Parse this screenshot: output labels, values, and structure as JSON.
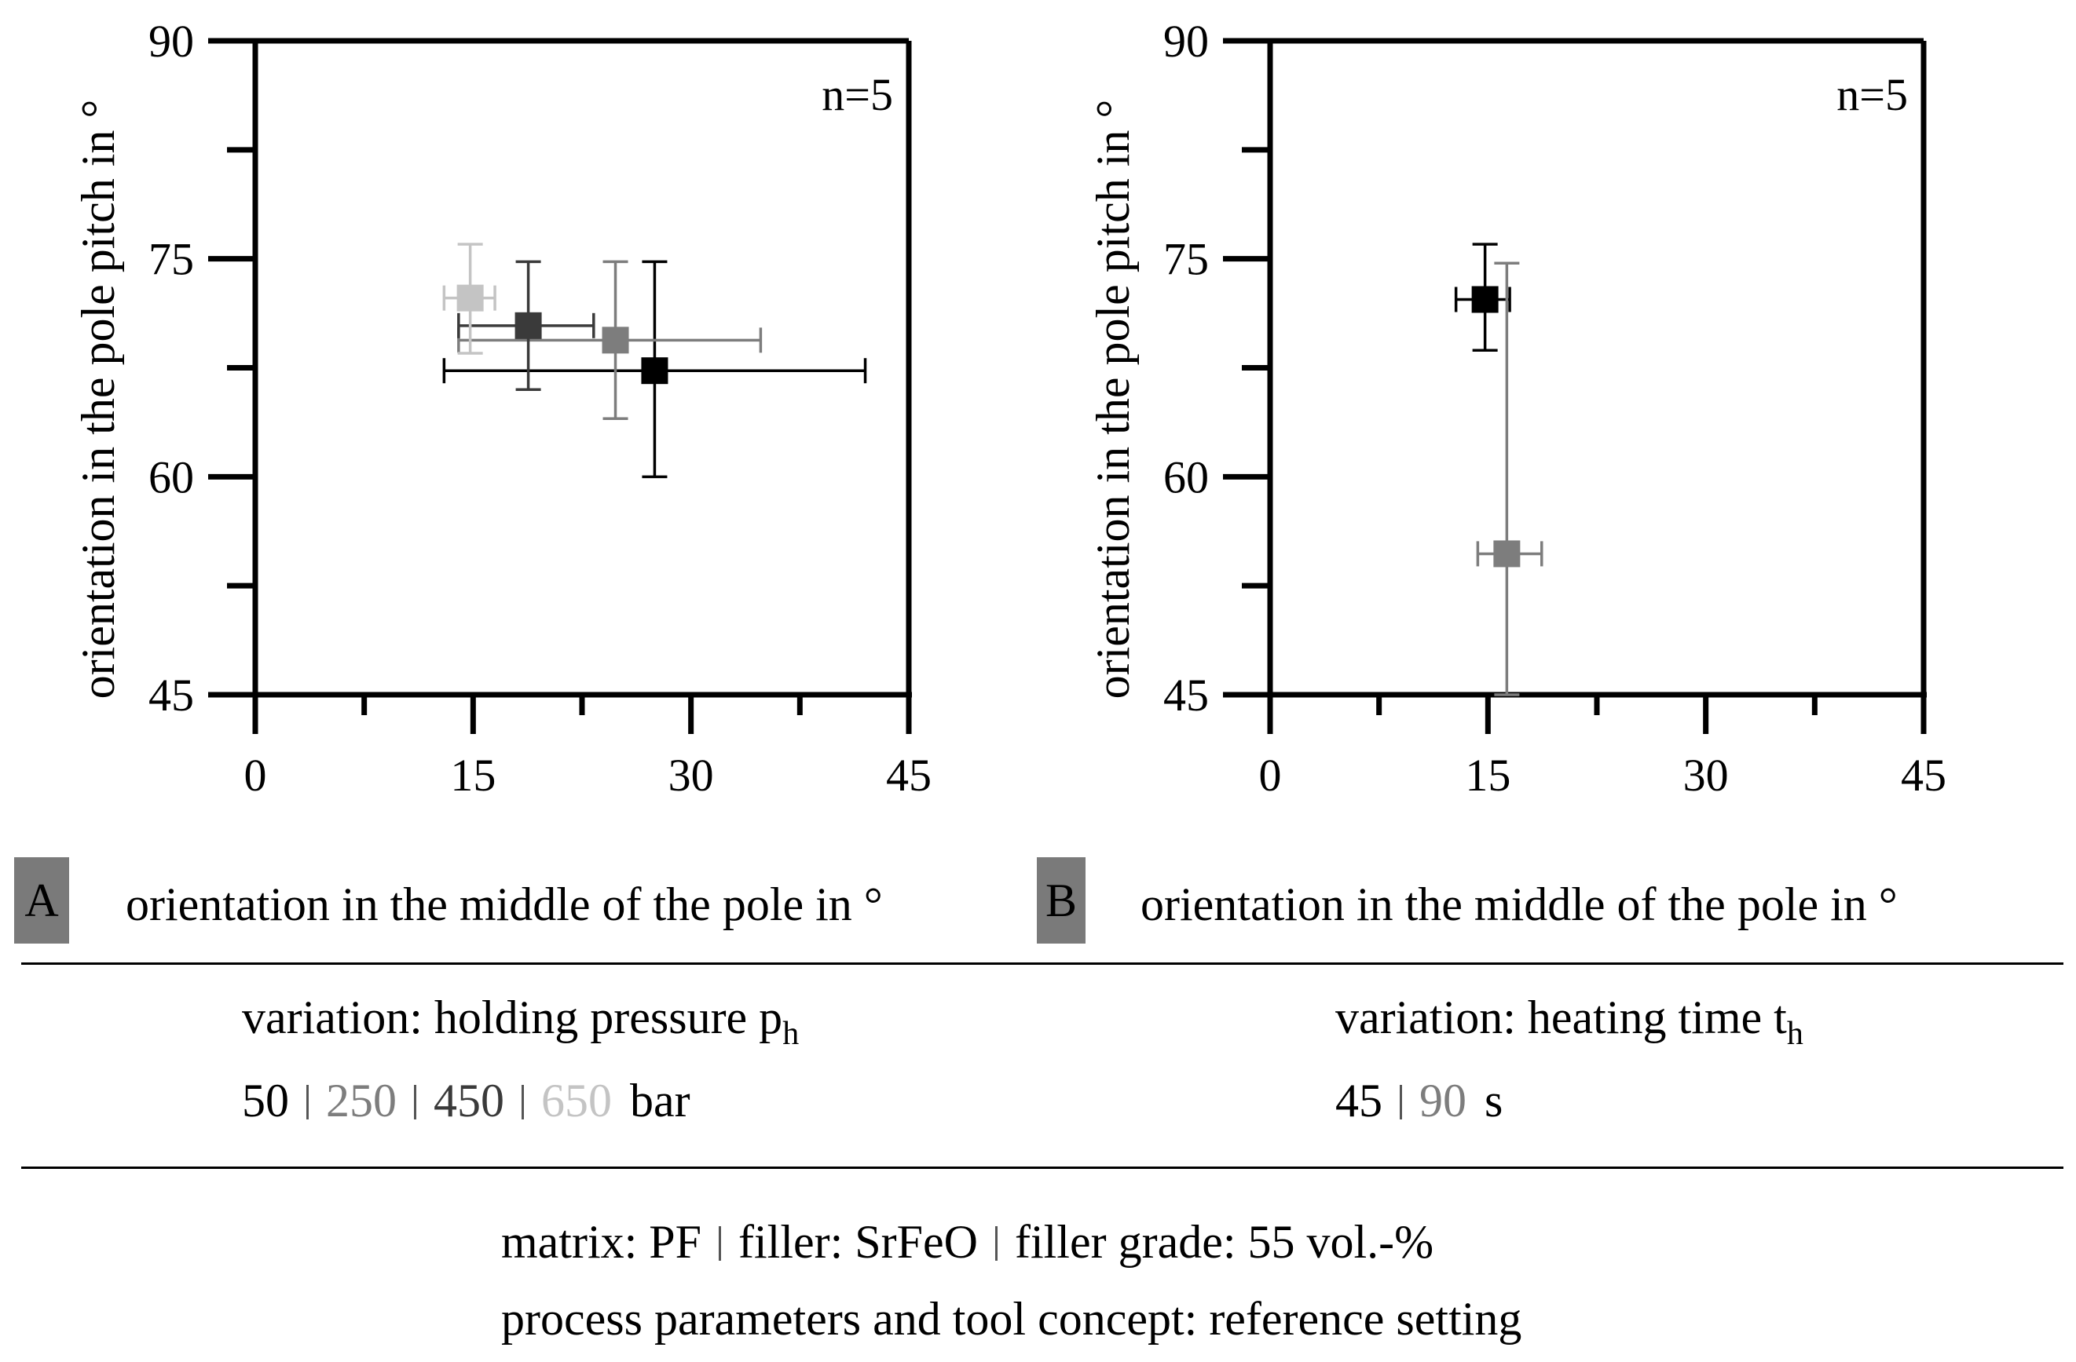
{
  "chart_data": [
    {
      "type": "scatter",
      "panel": "A",
      "annotation": "n=5",
      "xlabel": "orientation in the middle of the pole in °",
      "ylabel": "orientation in the pole pitch in °",
      "xlim": [
        0,
        45
      ],
      "ylim": [
        45,
        90
      ],
      "xticks": [
        "0",
        "15",
        "30",
        "45"
      ],
      "yticks": [
        "45",
        "60",
        "75",
        "90"
      ],
      "series": [
        {
          "name": "50 bar",
          "color": "#000000",
          "x": 27.5,
          "y": 67.3,
          "xerr": [
            13,
            42
          ],
          "yerr": [
            60,
            74.8
          ]
        },
        {
          "name": "250 bar",
          "color": "#7d7d7d",
          "x": 24.8,
          "y": 69.4,
          "xerr": [
            14,
            34.8
          ],
          "yerr": [
            64,
            74.8
          ]
        },
        {
          "name": "450 bar",
          "color": "#3a3a3a",
          "x": 18.8,
          "y": 70.4,
          "xerr": [
            14,
            23.3
          ],
          "yerr": [
            66,
            74.8
          ]
        },
        {
          "name": "650 bar",
          "color": "#c4c4c4",
          "x": 14.8,
          "y": 72.3,
          "xerr": [
            13,
            16.5
          ],
          "yerr": [
            68.5,
            76
          ]
        }
      ]
    },
    {
      "type": "scatter",
      "panel": "B",
      "annotation": "n=5",
      "xlabel": "orientation in the middle of the pole in °",
      "ylabel": "orientation in the pole pitch in °",
      "xlim": [
        0,
        45
      ],
      "ylim": [
        45,
        90
      ],
      "xticks": [
        "0",
        "15",
        "30",
        "45"
      ],
      "yticks": [
        "45",
        "60",
        "75",
        "90"
      ],
      "series": [
        {
          "name": "45 s",
          "color": "#000000",
          "x": 14.8,
          "y": 72.2,
          "xerr": [
            12.8,
            16.5
          ],
          "yerr": [
            68.7,
            76
          ]
        },
        {
          "name": "90 s",
          "color": "#7d7d7d",
          "x": 16.3,
          "y": 54.7,
          "xerr": [
            14.3,
            18.7
          ],
          "yerr": [
            45,
            74.7
          ]
        }
      ]
    }
  ],
  "legend": {
    "left": {
      "title": "variation: holding pressure p",
      "title_sub": "h",
      "values": [
        {
          "text": "50",
          "color": "#000000"
        },
        {
          "text": "250",
          "color": "#7d7d7d"
        },
        {
          "text": "450",
          "color": "#3a3a3a"
        },
        {
          "text": "650",
          "color": "#c4c4c4"
        }
      ],
      "unit": "bar"
    },
    "right": {
      "title": "variation: heating time t",
      "title_sub": "h",
      "values": [
        {
          "text": "45",
          "color": "#000000"
        },
        {
          "text": "90",
          "color": "#7d7d7d"
        }
      ],
      "unit": "s"
    }
  },
  "footer": {
    "matrix": "matrix: PF",
    "filler": "filler: SrFeO",
    "grade": "filler grade: 55 vol.-%",
    "process": "process parameters and tool concept: reference setting"
  }
}
